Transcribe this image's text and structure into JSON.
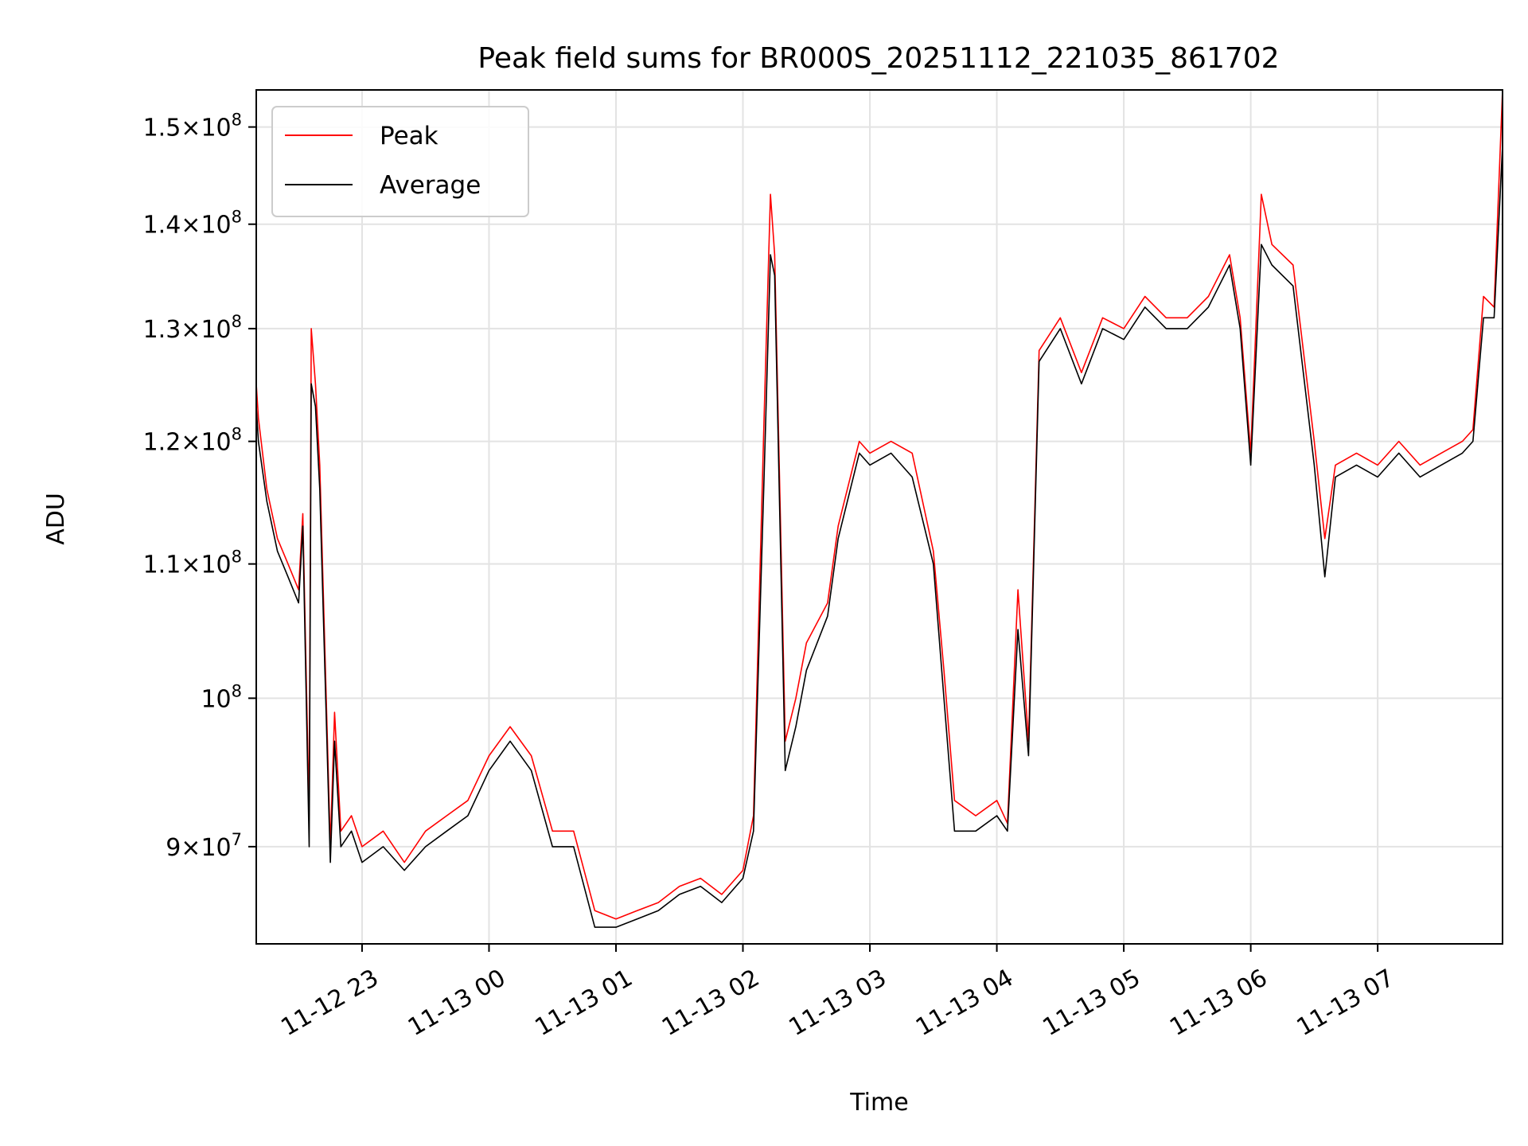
{
  "chart_data": {
    "type": "line",
    "title": "Peak field sums for BR000S_20251112_221035_861702",
    "xlabel": "Time",
    "ylabel": "ADU",
    "yscale": "log",
    "ylim": [
      84000000,
      154000000
    ],
    "xlim": [
      "2025-11-12 22:10",
      "2025-11-13 07:59"
    ],
    "grid": true,
    "legend": "upper left",
    "x_ticks": [
      "11-12 23",
      "11-13 00",
      "11-13 01",
      "11-13 02",
      "11-13 03",
      "11-13 04",
      "11-13 05",
      "11-13 06",
      "11-13 07"
    ],
    "y_ticks": [
      {
        "value": 90000000,
        "mantissa": "9",
        "exponent": "7"
      },
      {
        "value": 100000000,
        "mantissa": "",
        "exponent": "8"
      },
      {
        "value": 110000000,
        "mantissa": "1.1",
        "exponent": "8"
      },
      {
        "value": 120000000,
        "mantissa": "1.2",
        "exponent": "8"
      },
      {
        "value": 130000000,
        "mantissa": "1.3",
        "exponent": "8"
      },
      {
        "value": 140000000,
        "mantissa": "1.4",
        "exponent": "8"
      },
      {
        "value": 150000000,
        "mantissa": "1.5",
        "exponent": "8"
      }
    ],
    "series": [
      {
        "name": "Peak",
        "color": "#ff0000"
      },
      {
        "name": "Average",
        "color": "#000000"
      }
    ],
    "x": [
      "2025-11-12 22:10",
      "2025-11-12 22:11",
      "2025-11-12 22:15",
      "2025-11-12 22:20",
      "2025-11-12 22:25",
      "2025-11-12 22:30",
      "2025-11-12 22:32",
      "2025-11-12 22:35",
      "2025-11-12 22:36",
      "2025-11-12 22:38",
      "2025-11-12 22:40",
      "2025-11-12 22:45",
      "2025-11-12 22:47",
      "2025-11-12 22:50",
      "2025-11-12 22:55",
      "2025-11-12 23:00",
      "2025-11-12 23:10",
      "2025-11-12 23:20",
      "2025-11-12 23:30",
      "2025-11-12 23:40",
      "2025-11-12 23:50",
      "2025-11-13 00:00",
      "2025-11-13 00:10",
      "2025-11-13 00:20",
      "2025-11-13 00:30",
      "2025-11-13 00:40",
      "2025-11-13 00:50",
      "2025-11-13 01:00",
      "2025-11-13 01:10",
      "2025-11-13 01:20",
      "2025-11-13 01:30",
      "2025-11-13 01:40",
      "2025-11-13 01:50",
      "2025-11-13 02:00",
      "2025-11-13 02:05",
      "2025-11-13 02:10",
      "2025-11-13 02:13",
      "2025-11-13 02:15",
      "2025-11-13 02:20",
      "2025-11-13 02:25",
      "2025-11-13 02:30",
      "2025-11-13 02:40",
      "2025-11-13 02:45",
      "2025-11-13 02:55",
      "2025-11-13 03:00",
      "2025-11-13 03:10",
      "2025-11-13 03:20",
      "2025-11-13 03:30",
      "2025-11-13 03:35",
      "2025-11-13 03:40",
      "2025-11-13 03:50",
      "2025-11-13 04:00",
      "2025-11-13 04:05",
      "2025-11-13 04:10",
      "2025-11-13 04:15",
      "2025-11-13 04:20",
      "2025-11-13 04:30",
      "2025-11-13 04:40",
      "2025-11-13 04:50",
      "2025-11-13 05:00",
      "2025-11-13 05:10",
      "2025-11-13 05:20",
      "2025-11-13 05:30",
      "2025-11-13 05:40",
      "2025-11-13 05:50",
      "2025-11-13 05:55",
      "2025-11-13 06:00",
      "2025-11-13 06:05",
      "2025-11-13 06:10",
      "2025-11-13 06:20",
      "2025-11-13 06:30",
      "2025-11-13 06:35",
      "2025-11-13 06:40",
      "2025-11-13 06:50",
      "2025-11-13 07:00",
      "2025-11-13 07:10",
      "2025-11-13 07:20",
      "2025-11-13 07:30",
      "2025-11-13 07:40",
      "2025-11-13 07:45",
      "2025-11-13 07:50",
      "2025-11-13 07:55",
      "2025-11-13 07:59"
    ],
    "peak": [
      125000000,
      122000000,
      116000000,
      112000000,
      110000000,
      108000000,
      114000000,
      92000000,
      130000000,
      125000000,
      118000000,
      90000000,
      99000000,
      91000000,
      92000000,
      90000000,
      91000000,
      89000000,
      91000000,
      92000000,
      93000000,
      96000000,
      98000000,
      96000000,
      91000000,
      91000000,
      86000000,
      85500000,
      86000000,
      86500000,
      87500000,
      88000000,
      87000000,
      88500000,
      92000000,
      122000000,
      143000000,
      137000000,
      97000000,
      100000000,
      104000000,
      107000000,
      113000000,
      120000000,
      119000000,
      120000000,
      119000000,
      111000000,
      102000000,
      93000000,
      92000000,
      93000000,
      91500000,
      108000000,
      97000000,
      128000000,
      131000000,
      126000000,
      131000000,
      130000000,
      133000000,
      131000000,
      131000000,
      133000000,
      137000000,
      131000000,
      119000000,
      143000000,
      138000000,
      136000000,
      120000000,
      112000000,
      118000000,
      119000000,
      118000000,
      120000000,
      118000000,
      119000000,
      120000000,
      121000000,
      133000000,
      132000000,
      154000000
    ],
    "average": [
      123000000,
      120000000,
      115000000,
      111000000,
      109000000,
      107000000,
      113000000,
      90000000,
      125000000,
      123000000,
      116000000,
      89000000,
      97000000,
      90000000,
      91000000,
      89000000,
      90000000,
      88500000,
      90000000,
      91000000,
      92000000,
      95000000,
      97000000,
      95000000,
      90000000,
      90000000,
      85000000,
      85000000,
      85500000,
      86000000,
      87000000,
      87500000,
      86500000,
      88000000,
      91000000,
      117000000,
      137000000,
      135000000,
      95000000,
      98000000,
      102000000,
      106000000,
      112000000,
      119000000,
      118000000,
      119000000,
      117000000,
      110000000,
      100000000,
      91000000,
      91000000,
      92000000,
      91000000,
      105000000,
      96000000,
      127000000,
      130000000,
      125000000,
      130000000,
      129000000,
      132000000,
      130000000,
      130000000,
      132000000,
      136000000,
      130000000,
      118000000,
      138000000,
      136000000,
      134000000,
      118000000,
      109000000,
      117000000,
      118000000,
      117000000,
      119000000,
      117000000,
      118000000,
      119000000,
      120000000,
      131000000,
      131000000,
      148000000
    ]
  }
}
